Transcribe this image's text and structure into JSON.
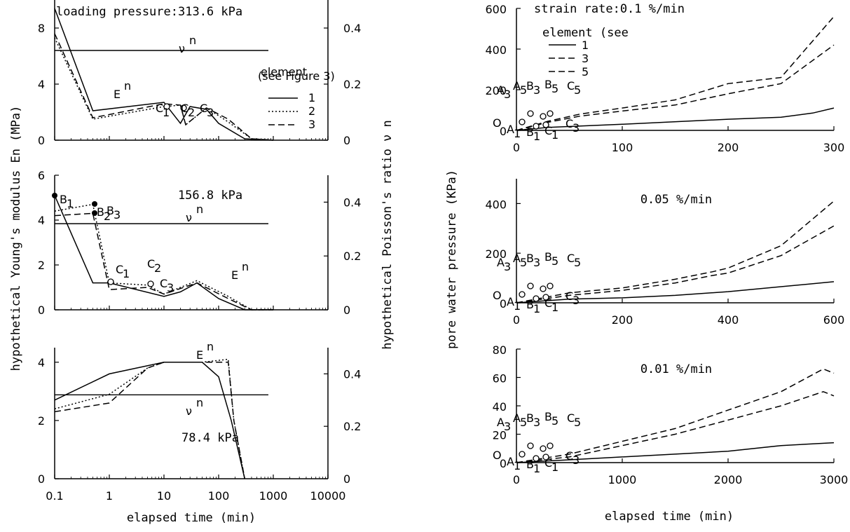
{
  "chart_data": [
    {
      "type": "line",
      "panel": "left-top",
      "title": "loading pressure:313.6 kPa",
      "xscale": "log",
      "xlim": [
        0.1,
        10000
      ],
      "ylim": [
        0,
        10
      ],
      "y2lim": [
        0,
        0.5
      ],
      "yticks": [
        "0",
        "4",
        "8"
      ],
      "y2ticks": [
        "0",
        "0.2",
        "0.4"
      ],
      "legend_title": "element\n(see Figure 3)",
      "legend": [
        "1",
        "2",
        "3"
      ],
      "labels": [
        "E",
        "n",
        "ν",
        "n",
        "C",
        "1",
        "C",
        "2",
        "C",
        "3"
      ],
      "series": [
        {
          "name": "1",
          "x": [
            0.1,
            0.5,
            10,
            20,
            30,
            60,
            100,
            300,
            1000
          ],
          "y": [
            9.4,
            2.1,
            2.7,
            1.2,
            2.4,
            2.2,
            1.2,
            0.1,
            0
          ]
        },
        {
          "name": "2",
          "x": [
            0.1,
            0.5,
            10,
            20,
            25,
            60,
            150,
            400,
            1000
          ],
          "y": [
            7.3,
            1.5,
            2.4,
            2.5,
            1.1,
            2.3,
            1.3,
            0.1,
            0
          ]
        },
        {
          "name": "3",
          "x": [
            0.1,
            0.5,
            10,
            20,
            25,
            60,
            150,
            400,
            1000
          ],
          "y": [
            7.6,
            1.6,
            2.6,
            2.5,
            1.1,
            2.3,
            1.5,
            0.1,
            0
          ]
        }
      ],
      "poisson": 0.32
    },
    {
      "type": "line",
      "panel": "left-middle",
      "title": "156.8 kPa",
      "xscale": "log",
      "xlim": [
        0.1,
        10000
      ],
      "ylim": [
        0,
        6
      ],
      "y2lim": [
        0,
        0.5
      ],
      "yticks": [
        "0",
        "2",
        "4",
        "6"
      ],
      "y2ticks": [
        "0",
        "0.2",
        "0.4"
      ],
      "labels": [
        "B",
        "1",
        "B",
        "2",
        "B",
        "3",
        "C",
        "1",
        "C",
        "2",
        "C",
        "3",
        "E",
        "n",
        "ν",
        "n"
      ],
      "series": [
        {
          "name": "1",
          "x": [
            0.1,
            0.5,
            1,
            10,
            20,
            40,
            100,
            300,
            1000
          ],
          "y": [
            5.1,
            1.2,
            1.2,
            0.6,
            0.8,
            1.2,
            0.5,
            0,
            0
          ]
        },
        {
          "name": "2",
          "x": [
            0.1,
            0.5,
            1,
            5,
            10,
            40,
            150,
            400,
            1000
          ],
          "y": [
            4.4,
            4.7,
            1.2,
            1.1,
            0.7,
            1.3,
            0.6,
            0,
            0
          ]
        },
        {
          "name": "3",
          "x": [
            0.1,
            0.5,
            1,
            5,
            10,
            40,
            150,
            400,
            1000
          ],
          "y": [
            4.2,
            4.3,
            0.9,
            1.0,
            0.7,
            1.2,
            0.5,
            0,
            0
          ]
        }
      ],
      "poisson": 0.32
    },
    {
      "type": "line",
      "panel": "left-bottom",
      "title": "78.4 kPa",
      "xscale": "log",
      "xlim": [
        0.1,
        10000
      ],
      "ylim": [
        0,
        4.5
      ],
      "y2lim": [
        0,
        0.5
      ],
      "yticks": [
        "0",
        "2",
        "4"
      ],
      "y2ticks": [
        "0",
        "0.2",
        "0.4"
      ],
      "xticks": [
        "0.1",
        "1",
        "10",
        "100",
        "1000",
        "10000"
      ],
      "xlabel": "elapsed time (min)",
      "labels": [
        "E",
        "n",
        "ν",
        "n"
      ],
      "series": [
        {
          "name": "1",
          "x": [
            0.1,
            1,
            10,
            50,
            100,
            170,
            300
          ],
          "y": [
            2.7,
            3.6,
            4.0,
            4.0,
            3.5,
            2.0,
            0
          ]
        },
        {
          "name": "2",
          "x": [
            0.1,
            1,
            5,
            10,
            50,
            150,
            190,
            300
          ],
          "y": [
            2.4,
            2.9,
            3.8,
            4.0,
            4.0,
            4.1,
            2.0,
            0
          ]
        },
        {
          "name": "3",
          "x": [
            0.1,
            1,
            5,
            10,
            50,
            150,
            190,
            300
          ],
          "y": [
            2.3,
            2.6,
            3.8,
            4.0,
            4.0,
            4.0,
            2.0,
            0
          ]
        }
      ],
      "poisson": 0.32
    },
    {
      "type": "line",
      "panel": "right-top",
      "title": "strain rate:0.1 %/min",
      "xlim": [
        0,
        300
      ],
      "ylim": [
        0,
        600
      ],
      "xticks": [
        "0",
        "100",
        "200",
        "300"
      ],
      "yticks": [
        "0",
        "200",
        "400",
        "600"
      ],
      "legend_title": "element (see",
      "legend": [
        "1",
        "3",
        "5"
      ],
      "labels": [
        "A",
        "3",
        "A",
        "5",
        "B",
        "3",
        "B",
        "5",
        "C",
        "5",
        "O",
        "A",
        "1",
        "B",
        "1",
        "C",
        "1",
        "C",
        "3"
      ],
      "series": [
        {
          "name": "1",
          "x": [
            0,
            30,
            100,
            200,
            250,
            280,
            300
          ],
          "y": [
            0,
            15,
            30,
            55,
            65,
            85,
            110
          ]
        },
        {
          "name": "3",
          "x": [
            0,
            30,
            60,
            100,
            150,
            200,
            250,
            300
          ],
          "y": [
            0,
            40,
            70,
            95,
            125,
            180,
            230,
            420
          ]
        },
        {
          "name": "5",
          "x": [
            0,
            30,
            60,
            100,
            150,
            200,
            250,
            300
          ],
          "y": [
            0,
            45,
            80,
            110,
            150,
            230,
            260,
            560
          ]
        }
      ]
    },
    {
      "type": "line",
      "panel": "right-middle",
      "title": "0.05 %/min",
      "xlim": [
        0,
        600
      ],
      "ylim": [
        0,
        500
      ],
      "xticks": [
        "0",
        "200",
        "400",
        "600"
      ],
      "yticks": [
        "0",
        "200",
        "400"
      ],
      "ylabel": "pore water pressure (KPa)",
      "labels": [
        "A",
        "3",
        "A",
        "5",
        "B",
        "3",
        "B",
        "5",
        "C",
        "5",
        "O",
        "A",
        "1",
        "B",
        "1",
        "C",
        "1",
        "C",
        "3"
      ],
      "series": [
        {
          "name": "1",
          "x": [
            0,
            100,
            200,
            300,
            400,
            500,
            600
          ],
          "y": [
            0,
            15,
            20,
            30,
            45,
            65,
            85
          ]
        },
        {
          "name": "3",
          "x": [
            0,
            100,
            200,
            300,
            370,
            400,
            500,
            600
          ],
          "y": [
            0,
            30,
            50,
            80,
            110,
            120,
            190,
            310
          ]
        },
        {
          "name": "5",
          "x": [
            0,
            100,
            200,
            300,
            370,
            400,
            500,
            600
          ],
          "y": [
            0,
            40,
            60,
            95,
            125,
            140,
            230,
            410
          ]
        }
      ]
    },
    {
      "type": "line",
      "panel": "right-bottom",
      "title": "0.01 %/min",
      "xlim": [
        0,
        3000
      ],
      "ylim": [
        0,
        80
      ],
      "xticks": [
        "0",
        "1000",
        "2000",
        "3000"
      ],
      "yticks": [
        "0",
        "20",
        "40",
        "60",
        "80"
      ],
      "xlabel": "elapsed time (min)",
      "labels": [
        "A",
        "3",
        "A",
        "5",
        "B",
        "3",
        "B",
        "5",
        "C",
        "5",
        "O",
        "A",
        "1",
        "B",
        "1",
        "C",
        "1",
        "C",
        "3"
      ],
      "series": [
        {
          "name": "1",
          "x": [
            0,
            500,
            1000,
            1500,
            2000,
            2500,
            3000
          ],
          "y": [
            0,
            2,
            4,
            6,
            8,
            12,
            14
          ]
        },
        {
          "name": "3",
          "x": [
            0,
            500,
            1000,
            1500,
            2000,
            2500,
            2900,
            3000
          ],
          "y": [
            0,
            4,
            12,
            20,
            30,
            40,
            50,
            47
          ]
        },
        {
          "name": "5",
          "x": [
            0,
            500,
            1000,
            1500,
            2000,
            2500,
            2900,
            3000
          ],
          "y": [
            0,
            6,
            15,
            24,
            37,
            50,
            66,
            63
          ]
        }
      ]
    }
  ],
  "left_ylabel": "hypothetical Young's modulus E",
  "left_ylabel_sup": "n",
  "left_ylabel_unit": "(MPa)",
  "right_ylabel": "hypothetical Poisson's ratio ν",
  "right_ylabel_sup": "n"
}
